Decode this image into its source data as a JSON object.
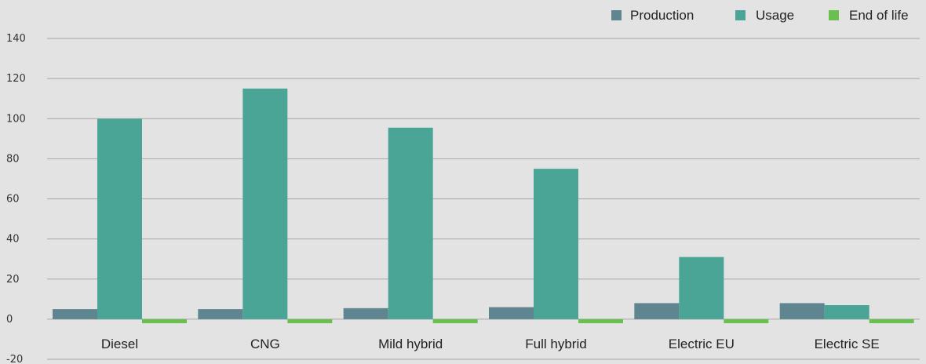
{
  "chart_data": {
    "type": "bar",
    "title": "",
    "xlabel": "",
    "ylabel": "",
    "ylim": [
      -20,
      140
    ],
    "yticks": [
      -20,
      0,
      20,
      40,
      60,
      80,
      100,
      120,
      140
    ],
    "grid": true,
    "legend_position": "top-right",
    "categories": [
      "Diesel",
      "CNG",
      "Mild hybrid",
      "Full hybrid",
      "Electric EU",
      "Electric SE"
    ],
    "series": [
      {
        "name": "Production",
        "color": "#5f8590",
        "values": [
          5,
          5,
          5.5,
          6,
          8,
          8
        ]
      },
      {
        "name": "Usage",
        "color": "#4aa596",
        "values": [
          100,
          115,
          95.5,
          75,
          31,
          7
        ]
      },
      {
        "name": "End of life",
        "color": "#6ac04e",
        "values": [
          -2,
          -2,
          -2,
          -2,
          -2,
          -2
        ]
      }
    ]
  }
}
